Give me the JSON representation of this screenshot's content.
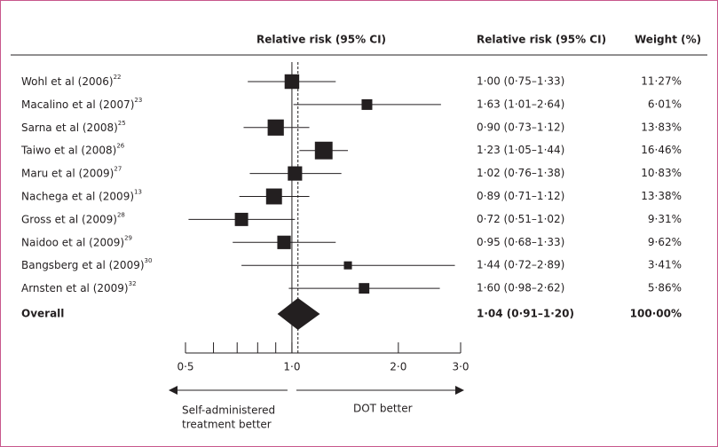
{
  "chart_data": {
    "type": "forest",
    "header_plot": "Relative risk (95% CI)",
    "header_ci": "Relative risk (95% CI)",
    "header_weight": "Weight (%)",
    "categories": [
      "Wohl et al (2006)",
      "Macalino et al (2007)",
      "Sarna et al (2008)",
      "Taiwo et al (2008)",
      "Maru et al (2009)",
      "Nachega et al (2009)",
      "Gross et al (2009)",
      "Naidoo et al (2009)",
      "Bangsberg et al (2009)",
      "Arnsten et al (2009)"
    ],
    "references": [
      "22",
      "23",
      "25",
      "26",
      "27",
      "13",
      "28",
      "29",
      "30",
      "32"
    ],
    "values": [
      1.0,
      1.63,
      0.9,
      1.23,
      1.02,
      0.89,
      0.72,
      0.95,
      1.44,
      1.6
    ],
    "lower": [
      0.75,
      1.01,
      0.73,
      1.05,
      0.76,
      0.71,
      0.51,
      0.68,
      0.72,
      0.98
    ],
    "upper": [
      1.33,
      2.64,
      1.12,
      1.44,
      1.38,
      1.12,
      1.02,
      1.33,
      2.89,
      2.62
    ],
    "value_labels": [
      "1·00 (0·75–1·33)",
      "1·63 (1·01–2·64)",
      "0·90 (0·73–1·12)",
      "1·23 (1·05–1·44)",
      "1·02 (0·76–1·38)",
      "0·89 (0·71–1·12)",
      "0·72 (0·51–1·02)",
      "0·95 (0·68–1·33)",
      "1·44 (0·72–2·89)",
      "1·60 (0·98–2·62)"
    ],
    "weights": [
      11.27,
      6.01,
      13.83,
      16.46,
      10.83,
      13.38,
      9.31,
      9.62,
      3.41,
      5.86
    ],
    "weight_labels": [
      "11·27%",
      "6·01%",
      "13·83%",
      "16·46%",
      "10·83%",
      "13·38%",
      "9·31%",
      "9·62%",
      "3·41%",
      "5·86%"
    ],
    "overall": {
      "label": "Overall",
      "value": 1.04,
      "lower": 0.91,
      "upper": 1.2,
      "value_label": "1·04 (0·91–1·20)",
      "weight": 100,
      "weight_label": "100·00%"
    },
    "xlim": [
      0.5,
      3.0
    ],
    "xscale": "log",
    "xticks": [
      {
        "value": 0.5,
        "label": "0·5"
      },
      {
        "value": 1.0,
        "label": "1·0"
      },
      {
        "value": 2.0,
        "label": "2·0"
      },
      {
        "value": 3.0,
        "label": "3·0"
      }
    ],
    "minor_xticks": [
      0.6,
      0.7,
      0.8,
      0.9
    ],
    "null_line": 1,
    "color": "#231f20",
    "left_label": [
      "Self-administered",
      "treatment better"
    ],
    "right_label": "DOT better"
  }
}
